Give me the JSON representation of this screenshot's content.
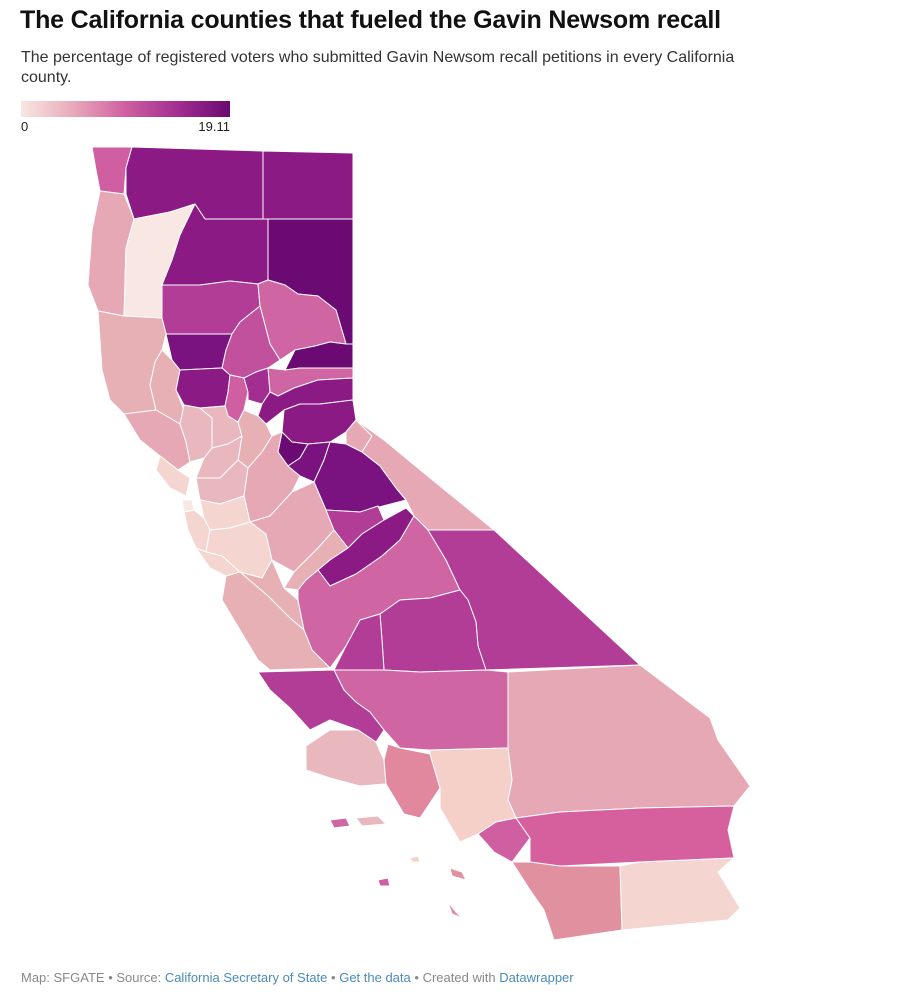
{
  "title": "The California counties that fueled the Gavin Newsom recall",
  "subtitle": "The percentage of registered voters who submitted Gavin Newsom recall petitions in every California county.",
  "legend": {
    "min_label": "0",
    "max_label": "19.11",
    "colors": [
      "#f8e7e2",
      "#e9a9bb",
      "#cf5fa1",
      "#a22e91",
      "#6a0a72"
    ]
  },
  "footer": {
    "map_credit": "Map: SFGATE",
    "separator": "•",
    "source_prefix": "Source:",
    "source_link": "California Secretary of State",
    "data_link": "Get the data",
    "created_prefix": "Created with",
    "created_link": "Datawrapper"
  }
}
